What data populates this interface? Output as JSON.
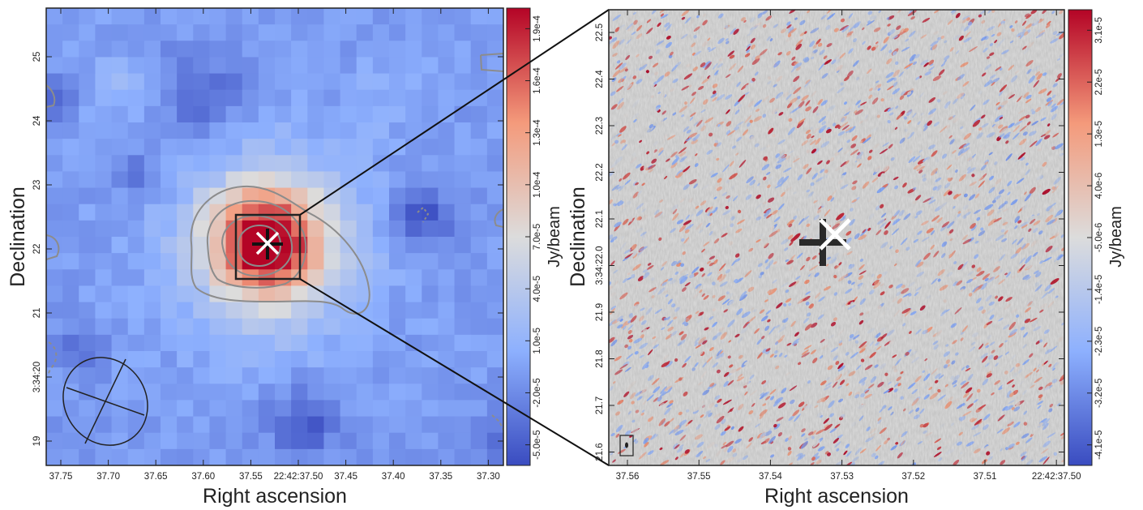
{
  "chart_data": [
    {
      "panel": "left",
      "type": "heatmap",
      "xlabel": "Right ascension",
      "ylabel": "Declination",
      "x_tick_labels": [
        "37.75",
        "37.70",
        "37.65",
        "37.60",
        "37.55",
        "22:42:37.50",
        "37.45",
        "37.40",
        "37.35",
        "37.30"
      ],
      "y_tick_labels": [
        "25",
        "24",
        "23",
        "22",
        "21",
        "3:34:20",
        "19"
      ],
      "colorbar": {
        "label": "Jy/beam",
        "tick_labels": [
          "-5.0e-5",
          "-2.0e-5",
          "1.0e-5",
          "4.0e-5",
          "7.0e-5",
          "1.0e-4",
          "1.3e-4",
          "1.6e-4",
          "1.9e-4"
        ],
        "colormap": "coolwarm",
        "color_low": "#3a4cc0",
        "color_mid": "#dcdcdc",
        "color_high": "#b40426"
      },
      "contours": "grey",
      "markers": [
        "black plus",
        "white cross"
      ],
      "beam": "ellipse lower-left",
      "zoom_box": "black rectangle around source"
    },
    {
      "panel": "right",
      "type": "heatmap",
      "xlabel": "Right ascension",
      "ylabel": "Declination",
      "x_tick_labels": [
        "37.56",
        "37.55",
        "37.54",
        "37.53",
        "37.52",
        "37.51",
        "22:42:37.50"
      ],
      "y_tick_labels": [
        "22.5",
        "22.4",
        "22.3",
        "22.2",
        "22.1",
        "3:34:22.0",
        "21.9",
        "21.8",
        "21.7",
        "21.6"
      ],
      "colorbar": {
        "label": "Jy/beam",
        "tick_labels": [
          "-4.1e-5",
          "-3.2e-5",
          "-2.3e-5",
          "-1.4e-5",
          "-5.0e-6",
          "4.0e-6",
          "1.3e-5",
          "2.2e-5",
          "3.1e-5"
        ],
        "colormap": "coolwarm"
      },
      "markers": [
        "black plus",
        "white cross"
      ],
      "beam": "small ellipse lower-left in box"
    }
  ]
}
